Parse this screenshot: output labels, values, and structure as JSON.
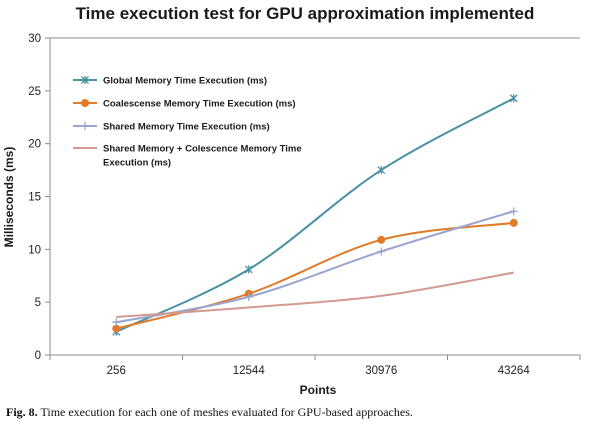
{
  "chart_data": {
    "type": "line",
    "title": "Time execution test for GPU approximation implemented",
    "xlabel": "Points",
    "ylabel": "Milliseconds (ms)",
    "categories": [
      "256",
      "12544",
      "30976",
      "43264"
    ],
    "ylim": [
      0,
      30
    ],
    "yticks": [
      0,
      5,
      10,
      15,
      20,
      25,
      30
    ],
    "grid": "horizontal-only-top-line",
    "legend_position": "top-left inside plot",
    "series": [
      {
        "name": "Global Memory Time Execution (ms)",
        "values": [
          2.2,
          8.1,
          17.5,
          24.3
        ],
        "color": "#4a90a4",
        "marker": "star"
      },
      {
        "name": "Coalescense Memory Time Execution (ms)",
        "values": [
          2.5,
          5.8,
          10.9,
          12.5
        ],
        "color": "#e07b2a",
        "marker": "circle"
      },
      {
        "name": "Shared Memory Time Execution (ms)",
        "values": [
          3.1,
          5.5,
          9.8,
          13.6
        ],
        "color": "#9aa6d0",
        "marker": "plus"
      },
      {
        "name": "Shared Memory + Colescence Memory Time Execution (ms)",
        "values": [
          3.6,
          4.5,
          5.6,
          7.8
        ],
        "color": "#d49a92",
        "marker": "none"
      }
    ]
  },
  "caption": {
    "label": "Fig. 8.",
    "text": " Time execution for each one of meshes evaluated for GPU-based approaches."
  }
}
